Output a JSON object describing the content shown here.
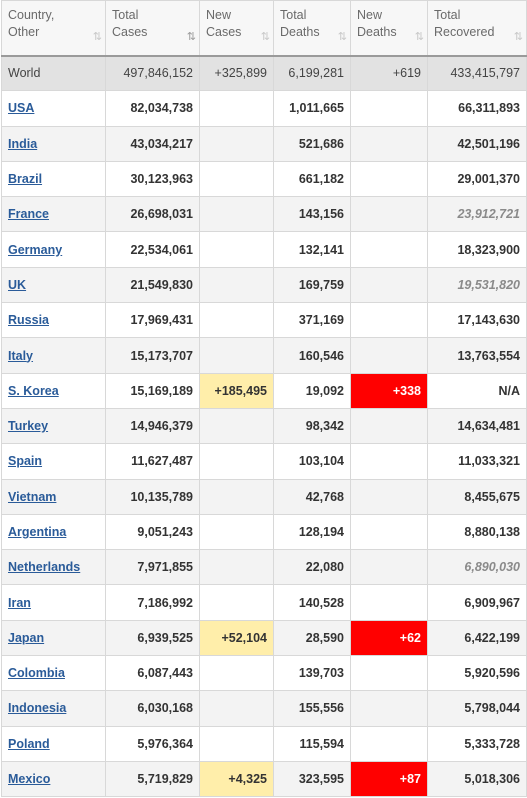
{
  "table": {
    "headers": [
      {
        "label": "Country,\nOther",
        "sort": "⇅"
      },
      {
        "label": "Total\nCases",
        "sort": "⇅"
      },
      {
        "label": "New\nCases",
        "sort": "⇅"
      },
      {
        "label": "Total\nDeaths",
        "sort": "⇅"
      },
      {
        "label": "New\nDeaths",
        "sort": "⇅"
      },
      {
        "label": "Total\nRecovered",
        "sort": "⇅"
      }
    ],
    "world": {
      "country": "World",
      "total_cases": "497,846,152",
      "new_cases": "+325,899",
      "total_deaths": "6,199,281",
      "new_deaths": "+619",
      "total_recovered": "433,415,797"
    },
    "rows": [
      {
        "country": "USA",
        "total_cases": "82,034,738",
        "new_cases": "",
        "total_deaths": "1,011,665",
        "new_deaths": "",
        "total_recovered": "66,311,893"
      },
      {
        "country": "India",
        "total_cases": "43,034,217",
        "new_cases": "",
        "total_deaths": "521,686",
        "new_deaths": "",
        "total_recovered": "42,501,196"
      },
      {
        "country": "Brazil",
        "total_cases": "30,123,963",
        "new_cases": "",
        "total_deaths": "661,182",
        "new_deaths": "",
        "total_recovered": "29,001,370"
      },
      {
        "country": "France",
        "total_cases": "26,698,031",
        "new_cases": "",
        "total_deaths": "143,156",
        "new_deaths": "",
        "total_recovered": "23,912,721"
      },
      {
        "country": "Germany",
        "total_cases": "22,534,061",
        "new_cases": "",
        "total_deaths": "132,141",
        "new_deaths": "",
        "total_recovered": "18,323,900"
      },
      {
        "country": "UK",
        "total_cases": "21,549,830",
        "new_cases": "",
        "total_deaths": "169,759",
        "new_deaths": "",
        "total_recovered": "19,531,820"
      },
      {
        "country": "Russia",
        "total_cases": "17,969,431",
        "new_cases": "",
        "total_deaths": "371,169",
        "new_deaths": "",
        "total_recovered": "17,143,630"
      },
      {
        "country": "Italy",
        "total_cases": "15,173,707",
        "new_cases": "",
        "total_deaths": "160,546",
        "new_deaths": "",
        "total_recovered": "13,763,554"
      },
      {
        "country": "S. Korea",
        "total_cases": "15,169,189",
        "new_cases": "+185,495",
        "total_deaths": "19,092",
        "new_deaths": "+338",
        "total_recovered": "N/A"
      },
      {
        "country": "Turkey",
        "total_cases": "14,946,379",
        "new_cases": "",
        "total_deaths": "98,342",
        "new_deaths": "",
        "total_recovered": "14,634,481"
      },
      {
        "country": "Spain",
        "total_cases": "11,627,487",
        "new_cases": "",
        "total_deaths": "103,104",
        "new_deaths": "",
        "total_recovered": "11,033,321"
      },
      {
        "country": "Vietnam",
        "total_cases": "10,135,789",
        "new_cases": "",
        "total_deaths": "42,768",
        "new_deaths": "",
        "total_recovered": "8,455,675"
      },
      {
        "country": "Argentina",
        "total_cases": "9,051,243",
        "new_cases": "",
        "total_deaths": "128,194",
        "new_deaths": "",
        "total_recovered": "8,880,138"
      },
      {
        "country": "Netherlands",
        "total_cases": "7,971,855",
        "new_cases": "",
        "total_deaths": "22,080",
        "new_deaths": "",
        "total_recovered": "6,890,030"
      },
      {
        "country": "Iran",
        "total_cases": "7,186,992",
        "new_cases": "",
        "total_deaths": "140,528",
        "new_deaths": "",
        "total_recovered": "6,909,967"
      },
      {
        "country": "Japan",
        "total_cases": "6,939,525",
        "new_cases": "+52,104",
        "total_deaths": "28,590",
        "new_deaths": "+62",
        "total_recovered": "6,422,199"
      },
      {
        "country": "Colombia",
        "total_cases": "6,087,443",
        "new_cases": "",
        "total_deaths": "139,703",
        "new_deaths": "",
        "total_recovered": "5,920,596"
      },
      {
        "country": "Indonesia",
        "total_cases": "6,030,168",
        "new_cases": "",
        "total_deaths": "155,556",
        "new_deaths": "",
        "total_recovered": "5,798,044"
      },
      {
        "country": "Poland",
        "total_cases": "5,976,364",
        "new_cases": "",
        "total_deaths": "115,594",
        "new_deaths": "",
        "total_recovered": "5,333,728"
      },
      {
        "country": "Mexico",
        "total_cases": "5,719,829",
        "new_cases": "+4,325",
        "total_deaths": "323,595",
        "new_deaths": "+87",
        "total_recovered": "5,018,306"
      }
    ]
  },
  "colors": {
    "link": "#2a5b99",
    "new_cases_highlight": "#ffeeaa",
    "new_deaths_highlight": "#ff0000",
    "world_row": "#e2e2e2"
  }
}
